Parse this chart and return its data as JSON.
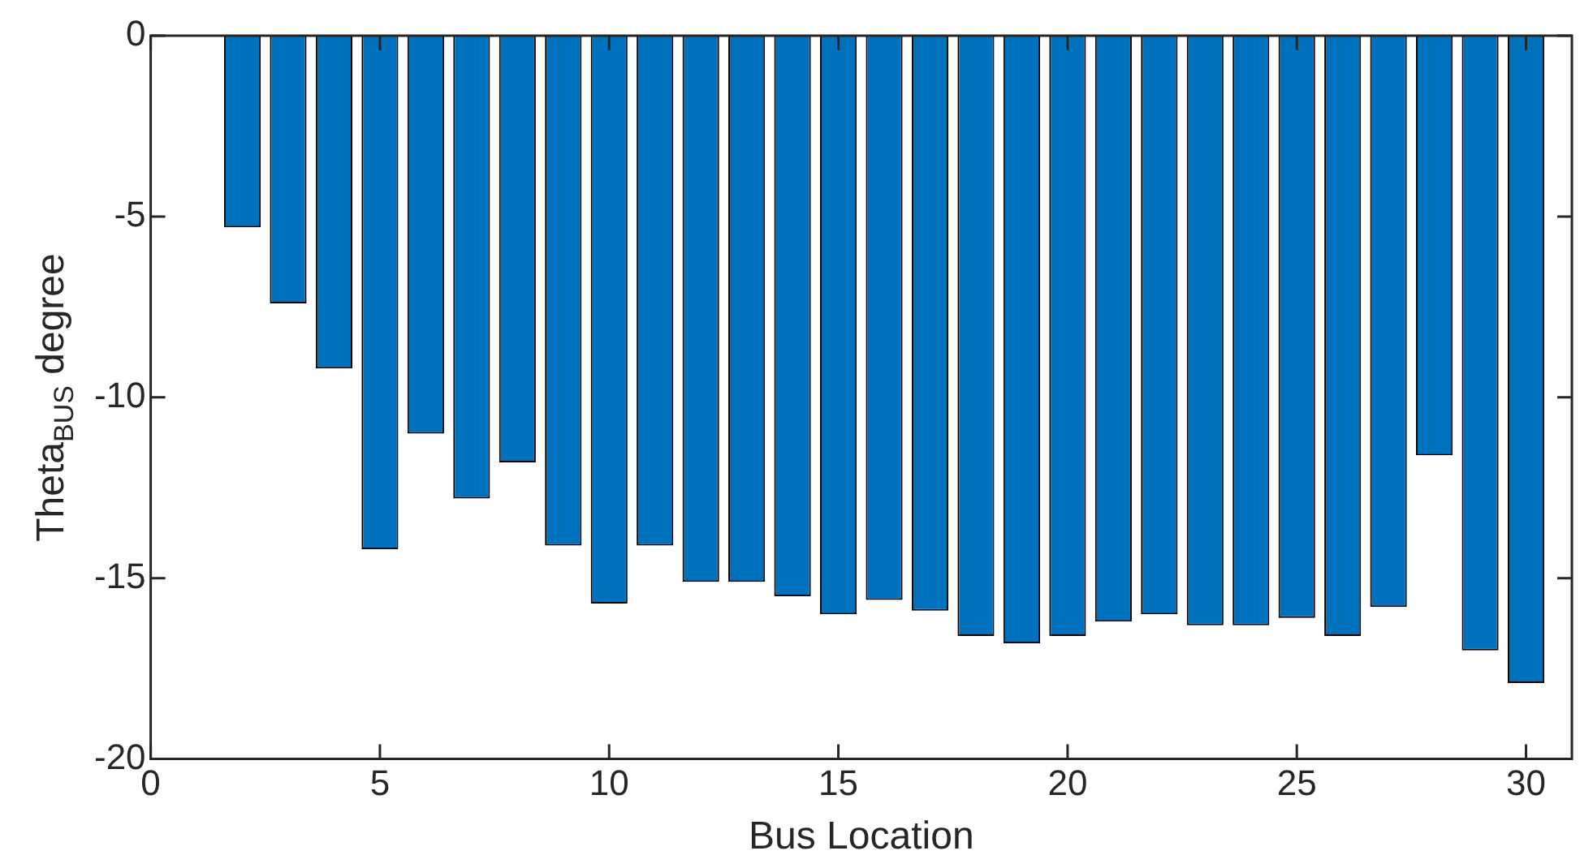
{
  "chart_data": {
    "type": "bar",
    "xlabel": "Bus Location",
    "ylabel": "Theta$_{BUS}$ degree",
    "x": [
      2,
      3,
      4,
      5,
      6,
      7,
      8,
      9,
      10,
      11,
      12,
      13,
      14,
      15,
      16,
      17,
      18,
      19,
      20,
      21,
      22,
      23,
      24,
      25,
      26,
      27,
      28,
      29,
      30
    ],
    "values": [
      -5.3,
      -7.4,
      -9.2,
      -14.2,
      -11.0,
      -12.8,
      -11.8,
      -14.1,
      -15.7,
      -14.1,
      -15.1,
      -15.1,
      -15.5,
      -16.0,
      -15.6,
      -15.9,
      -16.6,
      -16.8,
      -16.6,
      -16.2,
      -16.0,
      -16.3,
      -16.3,
      -16.1,
      -16.6,
      -15.8,
      -11.6,
      -17.0,
      -17.9
    ],
    "color": "#0072bd",
    "xlim": [
      0,
      31
    ],
    "xticks": [
      0,
      5,
      10,
      15,
      20,
      25,
      30
    ],
    "ylim": [
      -20,
      0
    ],
    "yticks": [
      -20,
      -15,
      -10,
      -5,
      0
    ],
    "grid": false
  }
}
